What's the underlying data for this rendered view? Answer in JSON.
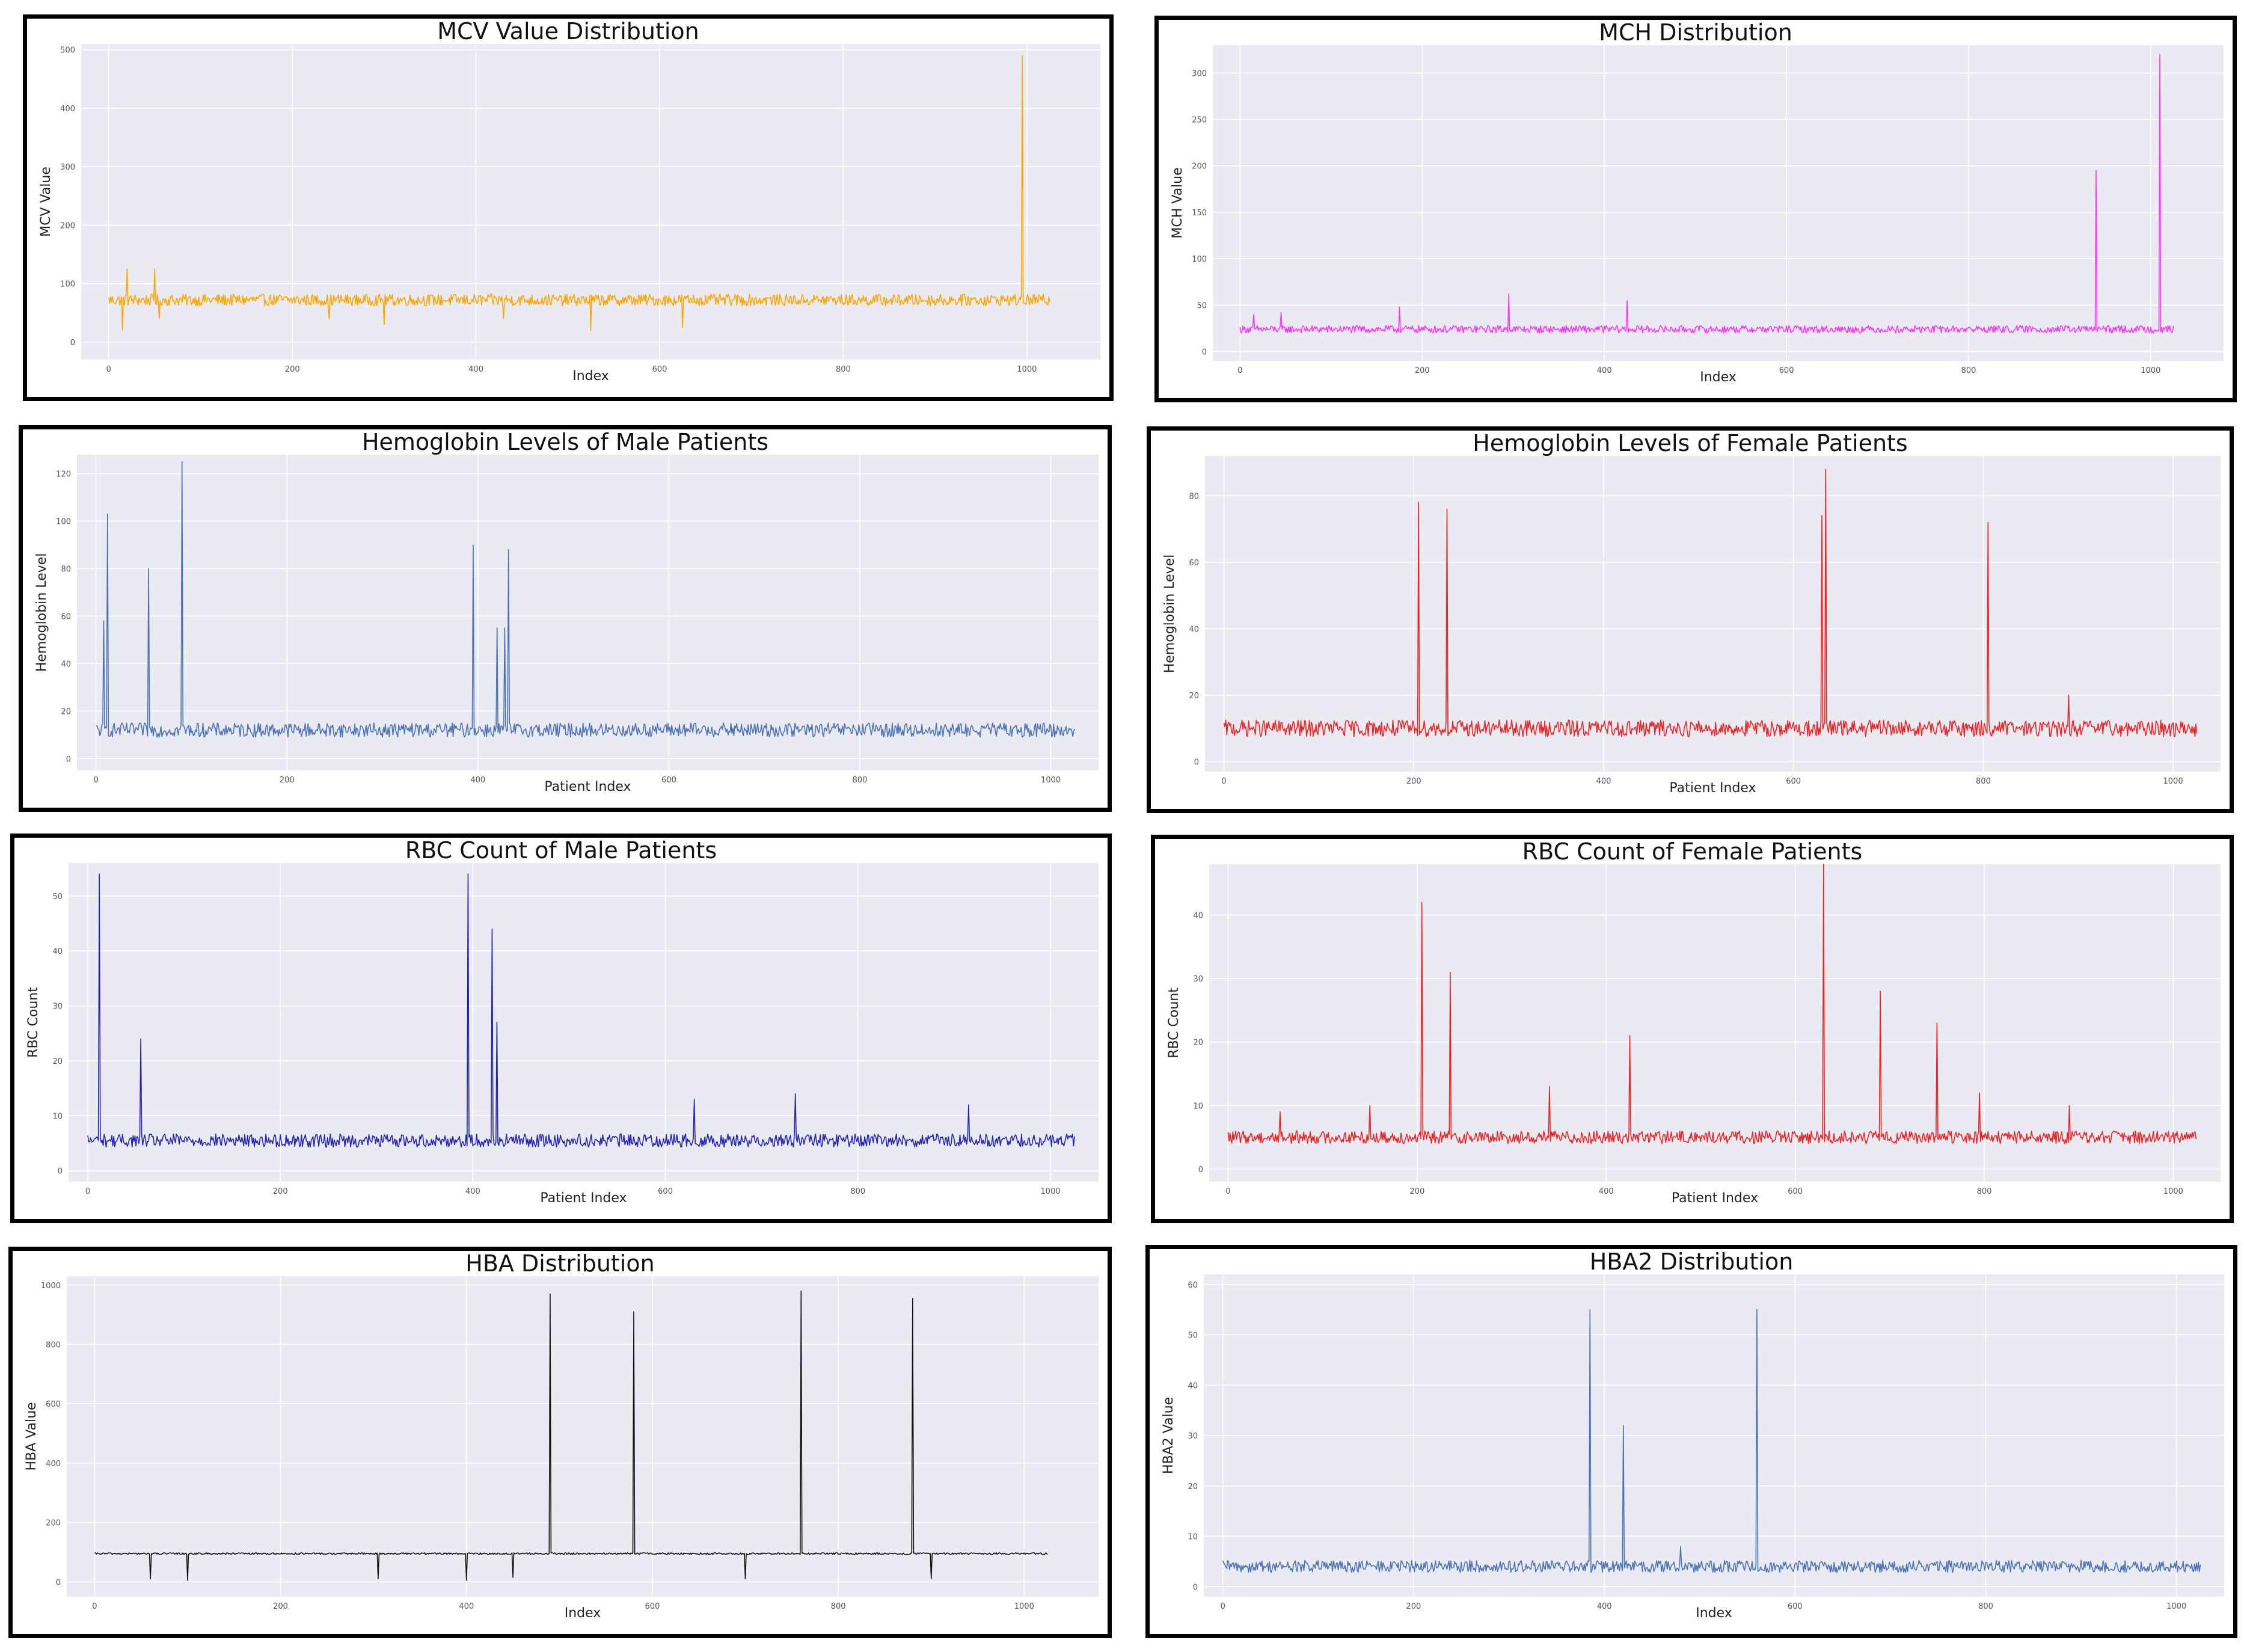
{
  "charts": [
    {
      "id": "mcv",
      "title": "MCV Value Distribution",
      "xlabel": "Index",
      "ylabel": "MCV Value",
      "color": "#ffa500",
      "xticks": [
        "0",
        "200",
        "400",
        "600",
        "800",
        "1000"
      ],
      "yticks": [
        "0",
        "100",
        "200",
        "300",
        "400",
        "500"
      ],
      "xlim": [
        -30,
        1080
      ],
      "ylim": [
        -30,
        510
      ],
      "baseline": 72,
      "noise": 10,
      "spikes": [
        [
          15,
          20
        ],
        [
          20,
          125
        ],
        [
          50,
          125
        ],
        [
          55,
          40
        ],
        [
          240,
          40
        ],
        [
          300,
          30
        ],
        [
          430,
          40
        ],
        [
          525,
          20
        ],
        [
          625,
          25
        ],
        [
          995,
          490
        ]
      ]
    },
    {
      "id": "mch",
      "title": "MCH Distribution",
      "xlabel": "Index",
      "ylabel": "MCH Value",
      "color": "#ff33ff",
      "xticks": [
        "0",
        "200",
        "400",
        "600",
        "800",
        "1000"
      ],
      "yticks": [
        "0",
        "50",
        "100",
        "150",
        "200",
        "250",
        "300"
      ],
      "xlim": [
        -30,
        1080
      ],
      "ylim": [
        -10,
        330
      ],
      "baseline": 24,
      "noise": 4,
      "spikes": [
        [
          15,
          40
        ],
        [
          45,
          42
        ],
        [
          175,
          48
        ],
        [
          295,
          62
        ],
        [
          425,
          55
        ],
        [
          940,
          195
        ],
        [
          1010,
          320
        ]
      ]
    },
    {
      "id": "hb-male",
      "title": "Hemoglobin Levels of Male Patients",
      "xlabel": "Patient Index",
      "ylabel": "Hemoglobin Level",
      "color": "#4a72b8",
      "xticks": [
        "0",
        "200",
        "400",
        "600",
        "800",
        "1000"
      ],
      "yticks": [
        "0",
        "20",
        "40",
        "60",
        "80",
        "100",
        "120"
      ],
      "xlim": [
        -20,
        1050
      ],
      "ylim": [
        -5,
        128
      ],
      "baseline": 12,
      "noise": 3,
      "spikes": [
        [
          12,
          103
        ],
        [
          8,
          58
        ],
        [
          55,
          80
        ],
        [
          90,
          125
        ],
        [
          395,
          90
        ],
        [
          420,
          55
        ],
        [
          428,
          55
        ],
        [
          432,
          88
        ]
      ]
    },
    {
      "id": "hb-female",
      "title": "Hemoglobin Levels of Female Patients",
      "xlabel": "Patient Index",
      "ylabel": "Hemoglobin Level",
      "color": "#ee2222",
      "xticks": [
        "0",
        "200",
        "400",
        "600",
        "800",
        "1000"
      ],
      "yticks": [
        "0",
        "20",
        "40",
        "60",
        "80"
      ],
      "xlim": [
        -20,
        1050
      ],
      "ylim": [
        -3,
        92
      ],
      "baseline": 10,
      "noise": 2.5,
      "spikes": [
        [
          205,
          78
        ],
        [
          235,
          76
        ],
        [
          630,
          74
        ],
        [
          634,
          88
        ],
        [
          805,
          72
        ],
        [
          890,
          20
        ]
      ]
    },
    {
      "id": "rbc-male",
      "title": "RBC Count of Male Patients",
      "xlabel": "Patient Index",
      "ylabel": "RBC Count",
      "color": "#2222bb",
      "xticks": [
        "0",
        "200",
        "400",
        "600",
        "800",
        "1000"
      ],
      "yticks": [
        "0",
        "10",
        "20",
        "30",
        "40",
        "50"
      ],
      "xlim": [
        -20,
        1050
      ],
      "ylim": [
        -2,
        56
      ],
      "baseline": 5.5,
      "noise": 1.2,
      "spikes": [
        [
          12,
          54
        ],
        [
          55,
          24
        ],
        [
          395,
          54
        ],
        [
          420,
          44
        ],
        [
          425,
          27
        ],
        [
          630,
          13
        ],
        [
          735,
          14
        ],
        [
          915,
          12
        ]
      ]
    },
    {
      "id": "rbc-female",
      "title": "RBC Count of Female Patients",
      "xlabel": "Patient Index",
      "ylabel": "RBC Count",
      "color": "#ee2222",
      "xticks": [
        "0",
        "200",
        "400",
        "600",
        "800",
        "1000"
      ],
      "yticks": [
        "0",
        "10",
        "20",
        "30",
        "40"
      ],
      "xlim": [
        -20,
        1050
      ],
      "ylim": [
        -2,
        48
      ],
      "baseline": 5,
      "noise": 1,
      "spikes": [
        [
          55,
          9
        ],
        [
          150,
          10
        ],
        [
          205,
          42
        ],
        [
          235,
          31
        ],
        [
          340,
          13
        ],
        [
          425,
          21
        ],
        [
          630,
          48
        ],
        [
          690,
          28
        ],
        [
          750,
          23
        ],
        [
          795,
          12
        ],
        [
          890,
          10
        ]
      ]
    },
    {
      "id": "hba",
      "title": "HBA Distribution",
      "xlabel": "Index",
      "ylabel": "HBA Value",
      "color": "#111111",
      "xticks": [
        "0",
        "200",
        "400",
        "600",
        "800",
        "1000"
      ],
      "yticks": [
        "0",
        "200",
        "400",
        "600",
        "800",
        "1000"
      ],
      "xlim": [
        -30,
        1080
      ],
      "ylim": [
        -50,
        1030
      ],
      "baseline": 95,
      "noise": 3,
      "spikes": [
        [
          490,
          970
        ],
        [
          580,
          910
        ],
        [
          760,
          980
        ],
        [
          880,
          955
        ],
        [
          60,
          10
        ],
        [
          100,
          5
        ],
        [
          305,
          10
        ],
        [
          400,
          5
        ],
        [
          450,
          15
        ],
        [
          700,
          10
        ],
        [
          900,
          10
        ]
      ]
    },
    {
      "id": "hba2",
      "title": "HBA2 Distribution",
      "xlabel": "Index",
      "ylabel": "HBA2 Value",
      "color": "#4a72b8",
      "xticks": [
        "0",
        "200",
        "400",
        "600",
        "800",
        "1000"
      ],
      "yticks": [
        "0",
        "10",
        "20",
        "30",
        "40",
        "50",
        "60"
      ],
      "xlim": [
        -20,
        1050
      ],
      "ylim": [
        -2,
        62
      ],
      "baseline": 4,
      "noise": 1.2,
      "spikes": [
        [
          385,
          55
        ],
        [
          420,
          32
        ],
        [
          560,
          55
        ],
        [
          480,
          8
        ]
      ]
    }
  ]
}
